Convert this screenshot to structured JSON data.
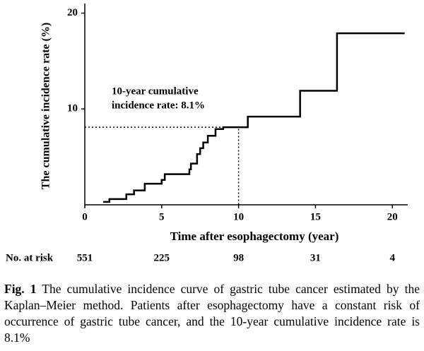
{
  "chart_data": {
    "type": "step",
    "y_label": "The cumulative incidence rate (%)",
    "x_label": "Time after esophagectomy (year)",
    "x": [
      1.2,
      1.6,
      2.7,
      3.2,
      3.9,
      5.0,
      5.2,
      6.8,
      6.9,
      7.3,
      7.5,
      7.7,
      8.0,
      8.5,
      9.0,
      10.6,
      14.0,
      16.4,
      20.8
    ],
    "values": [
      0.3,
      0.6,
      1.1,
      1.5,
      2.2,
      2.6,
      3.2,
      3.7,
      4.3,
      5.3,
      5.9,
      6.5,
      7.2,
      7.9,
      8.1,
      9.2,
      11.9,
      17.9,
      17.9
    ],
    "color": "#000000",
    "xlim": [
      0,
      21
    ],
    "ylim": [
      0,
      21
    ],
    "xticks": [
      0,
      5,
      10,
      15,
      20
    ],
    "yticks": [
      10,
      20
    ],
    "annotation": {
      "lines": [
        "10-year cumulative",
        "incidence rate: 8.1%"
      ],
      "x": 10,
      "y": 8.1
    },
    "at_risk": {
      "label": "No. at risk",
      "values": [
        551,
        225,
        98,
        31,
        4
      ]
    }
  },
  "caption": {
    "label": "Fig. 1",
    "text": "The cumulative incidence curve of gastric tube cancer estimated by the Kaplan–Meier method. Patients after esophagectomy have a constant risk of occurrence of gastric tube cancer, and the 10-year cumulative incidence rate is 8.1%"
  }
}
